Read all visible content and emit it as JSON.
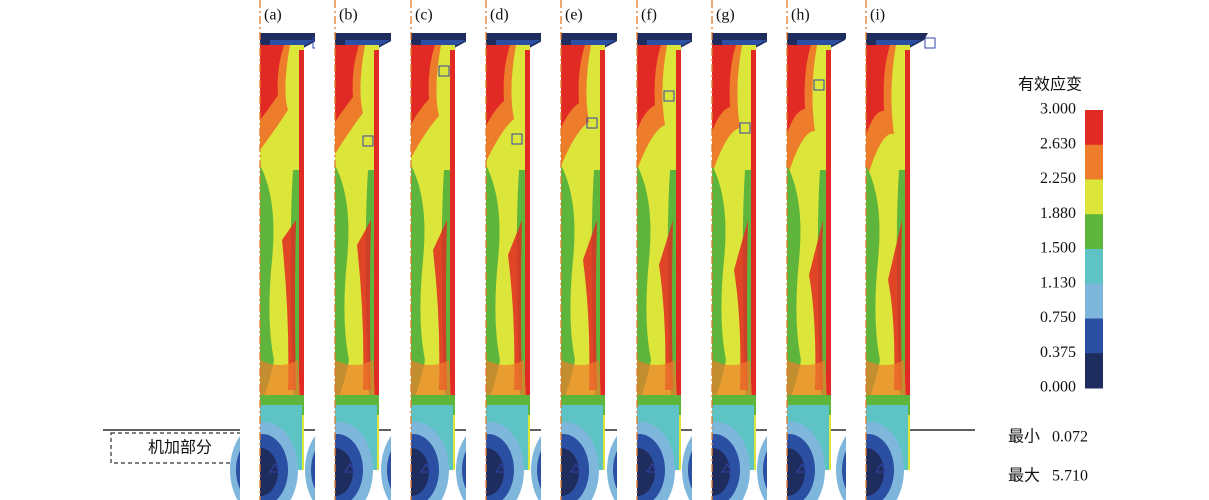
{
  "panels": [
    "(a)",
    "(b)",
    "(c)",
    "(d)",
    "(e)",
    "(f)",
    "(g)",
    "(h)",
    "(i)"
  ],
  "legend": {
    "title": "有效应变",
    "levels": [
      "3.000",
      "2.630",
      "2.250",
      "1.880",
      "1.500",
      "1.130",
      "0.750",
      "0.375",
      "0.000"
    ],
    "colors": [
      "#e02a23",
      "#ee7d2b",
      "#dce53a",
      "#5db53b",
      "#5ec3c4",
      "#7fb6dc",
      "#2b4fa3",
      "#1e2c5e"
    ]
  },
  "annotation": "机加部分",
  "stats": [
    {
      "label": "最小",
      "value": "0.072"
    },
    {
      "label": "最大",
      "value": "5.710"
    }
  ]
}
